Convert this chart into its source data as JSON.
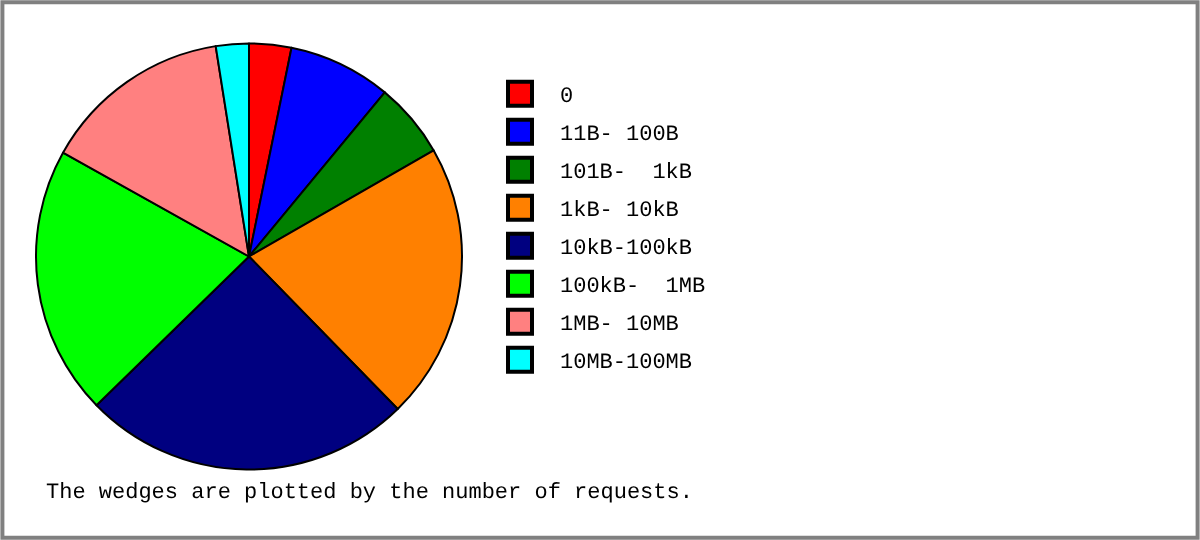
{
  "chart_data": {
    "type": "pie",
    "categories": [
      "0",
      "11B- 100B",
      "101B-  1kB",
      "1kB- 10kB",
      "10kB-100kB",
      "100kB-  1MB",
      "1MB- 10MB",
      "10MB-100MB"
    ],
    "values": [
      3.2,
      7.8,
      5.7,
      21,
      25,
      20.4,
      14.4,
      2.5
    ],
    "colors": [
      "#ff0000",
      "#0000ff",
      "#008000",
      "#ff8000",
      "#000080",
      "#00ff00",
      "#ff8080",
      "#00ffff"
    ],
    "legend": "right",
    "annotations": [
      "The wedges are plotted by the number of requests."
    ]
  }
}
